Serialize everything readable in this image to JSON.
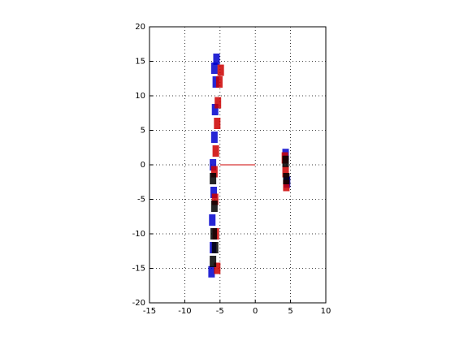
{
  "chart_data": {
    "type": "scatter",
    "xlim": [
      -15,
      10
    ],
    "xticks": [
      -15,
      -10,
      -5,
      0,
      5,
      10
    ],
    "ylim": [
      -20,
      20
    ],
    "yticks": [
      -20,
      -15,
      -10,
      -5,
      0,
      5,
      10,
      15,
      20
    ],
    "grid": true,
    "series": [
      {
        "color": "#0000cc",
        "marker": true,
        "x": [
          -6.2,
          -6.0,
          -6.1,
          -5.9,
          -6.0,
          -5.8,
          -5.7,
          -5.6,
          -5.5,
          -5.8,
          4.3,
          4.5
        ],
        "y": [
          -15.5,
          -12,
          -8,
          -4,
          0,
          4,
          8,
          12,
          15.3,
          14,
          1.5,
          -2.5
        ]
      },
      {
        "color": "#cc0000",
        "marker": true,
        "x": [
          -5.4,
          -5.6,
          -5.7,
          -5.8,
          -5.6,
          -5.4,
          -5.3,
          -5.1,
          -4.9,
          4.2,
          4.3,
          4.4
        ],
        "y": [
          -15,
          -10,
          -5,
          -1,
          2,
          6,
          9,
          12,
          13.7,
          1,
          -1,
          -3
        ]
      },
      {
        "color": "#000000",
        "marker": true,
        "x": [
          -6.0,
          -5.9,
          -5.8,
          -6.0,
          -5.7,
          4.4,
          4.3
        ],
        "y": [
          -14,
          -10,
          -6,
          -2,
          -12,
          -2,
          0.5
        ]
      },
      {
        "color": "#cc0000",
        "marker": false,
        "x": [
          -5,
          0
        ],
        "y": [
          0,
          0
        ]
      }
    ]
  }
}
